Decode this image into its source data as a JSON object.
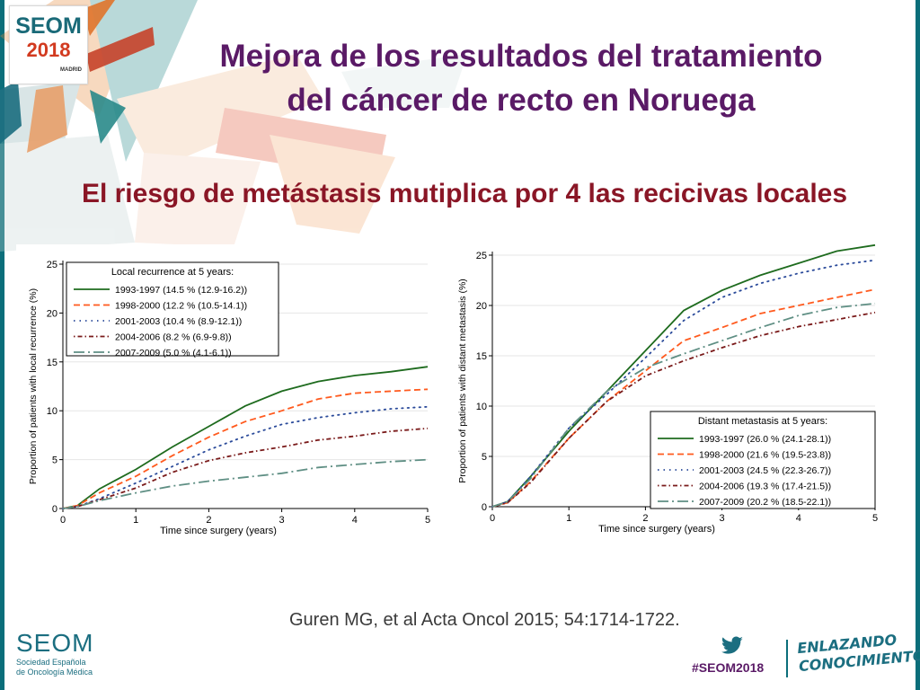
{
  "header": {
    "logo": {
      "name": "SEOM",
      "year": "2018",
      "city": "MADRID"
    },
    "title_line1": "Mejora de los resultados del tratamiento",
    "title_line2": "del cáncer de recto en Noruega",
    "subtitle": "El riesgo de metástasis mutiplica por 4 las recicivas locales"
  },
  "colors": {
    "title": "#5a1a66",
    "subtitle": "#8a1626",
    "brand_teal": "#1b6e80",
    "series": [
      "#1e6b1e",
      "#ff5a1e",
      "#2a4a9a",
      "#7a1a1a",
      "#5f8f84"
    ]
  },
  "chart_data": [
    {
      "type": "line",
      "title": "",
      "xlabel": "Time since surgery (years)",
      "ylabel": "Proportion of patients with local recurrence (%)",
      "xlim": [
        0,
        5
      ],
      "ylim": [
        0,
        25
      ],
      "xticks": [
        0,
        1,
        2,
        3,
        4,
        5
      ],
      "yticks": [
        0,
        5,
        10,
        15,
        20,
        25
      ],
      "grid": true,
      "legend_title": "Local recurrence at 5 years:",
      "legend_position": "top-left",
      "series": [
        {
          "name": "1993-1997 (14.5 % (12.9-16.2))",
          "style": "solid",
          "color": "#1e6b1e",
          "x": [
            0,
            0.2,
            0.5,
            1,
            1.5,
            2,
            2.5,
            3,
            3.5,
            4,
            4.5,
            5
          ],
          "y": [
            0,
            0.3,
            2.0,
            4.0,
            6.3,
            8.4,
            10.5,
            12.0,
            13.0,
            13.6,
            14.0,
            14.5
          ]
        },
        {
          "name": "1998-2000 (12.2 % (10.5-14.1))",
          "style": "dashed",
          "color": "#ff5a1e",
          "x": [
            0,
            0.2,
            0.5,
            1,
            1.5,
            2,
            2.5,
            3,
            3.5,
            4,
            4.5,
            5
          ],
          "y": [
            0,
            0.3,
            1.6,
            3.3,
            5.4,
            7.3,
            8.9,
            10.0,
            11.2,
            11.8,
            12.0,
            12.2
          ]
        },
        {
          "name": "2001-2003 (10.4 % (8.9-12.1))",
          "style": "dotted",
          "color": "#2a4a9a",
          "x": [
            0,
            0.2,
            0.5,
            1,
            1.5,
            2,
            2.5,
            3,
            3.5,
            4,
            4.5,
            5
          ],
          "y": [
            0,
            0.2,
            1.0,
            2.6,
            4.3,
            6.0,
            7.4,
            8.6,
            9.3,
            9.8,
            10.2,
            10.4
          ]
        },
        {
          "name": "2004-2006 (8.2 % (6.9-9.8))",
          "style": "dashdot",
          "color": "#7a1a1a",
          "x": [
            0,
            0.2,
            0.5,
            1,
            1.5,
            2,
            2.5,
            3,
            3.5,
            4,
            4.5,
            5
          ],
          "y": [
            0,
            0.2,
            0.9,
            2.1,
            3.7,
            4.9,
            5.7,
            6.3,
            7.0,
            7.4,
            7.9,
            8.2
          ]
        },
        {
          "name": "2007-2009 (5.0 % (4.1-6.1))",
          "style": "longdash",
          "color": "#5f8f84",
          "x": [
            0,
            0.2,
            0.5,
            1,
            1.5,
            2,
            2.5,
            3,
            3.5,
            4,
            4.5,
            5
          ],
          "y": [
            0,
            0.2,
            0.8,
            1.6,
            2.3,
            2.8,
            3.2,
            3.6,
            4.2,
            4.5,
            4.8,
            5.0
          ]
        }
      ]
    },
    {
      "type": "line",
      "title": "",
      "xlabel": "Time since surgery (years)",
      "ylabel": "Proportion of patients with distant metastasis (%)",
      "xlim": [
        0,
        5
      ],
      "ylim": [
        0,
        25
      ],
      "xticks": [
        0,
        1,
        2,
        3,
        4,
        5
      ],
      "yticks": [
        0,
        5,
        10,
        15,
        20,
        25
      ],
      "grid": true,
      "legend_title": "Distant metastasis at 5 years:",
      "legend_position": "bottom-right",
      "series": [
        {
          "name": "1993-1997 (26.0 % (24.1-28.1))",
          "style": "solid",
          "color": "#1e6b1e",
          "x": [
            0,
            0.2,
            0.5,
            1,
            1.5,
            2,
            2.5,
            3,
            3.5,
            4,
            4.5,
            5
          ],
          "y": [
            0,
            0.5,
            3.0,
            7.5,
            11.5,
            15.5,
            19.5,
            21.5,
            23.0,
            24.2,
            25.4,
            26.0
          ]
        },
        {
          "name": "1998-2000 (21.6 % (19.5-23.8))",
          "style": "dashed",
          "color": "#ff5a1e",
          "x": [
            0,
            0.2,
            0.5,
            1,
            1.5,
            2,
            2.5,
            3,
            3.5,
            4,
            4.5,
            5
          ],
          "y": [
            0,
            0.4,
            2.5,
            6.8,
            10.5,
            13.5,
            16.5,
            17.8,
            19.2,
            20.0,
            20.8,
            21.6
          ]
        },
        {
          "name": "2001-2003 (24.5 % (22.3-26.7))",
          "style": "dotted",
          "color": "#2a4a9a",
          "x": [
            0,
            0.2,
            0.5,
            1,
            1.5,
            2,
            2.5,
            3,
            3.5,
            4,
            4.5,
            5
          ],
          "y": [
            0,
            0.5,
            3.0,
            7.8,
            11.2,
            14.8,
            18.5,
            20.8,
            22.2,
            23.2,
            24.0,
            24.5
          ]
        },
        {
          "name": "2004-2006 (19.3 % (17.4-21.5))",
          "style": "dashdot",
          "color": "#7a1a1a",
          "x": [
            0,
            0.2,
            0.5,
            1,
            1.5,
            2,
            2.5,
            3,
            3.5,
            4,
            4.5,
            5
          ],
          "y": [
            0,
            0.4,
            2.4,
            6.8,
            10.5,
            13.0,
            14.5,
            15.8,
            17.0,
            17.9,
            18.6,
            19.3
          ]
        },
        {
          "name": "2007-2009 (20.2 % (18.5-22.1))",
          "style": "longdash",
          "color": "#5f8f84",
          "x": [
            0,
            0.2,
            0.5,
            1,
            1.5,
            2,
            2.5,
            3,
            3.5,
            4,
            4.5,
            5
          ],
          "y": [
            0,
            0.5,
            2.8,
            7.8,
            11.5,
            13.8,
            15.2,
            16.5,
            17.8,
            19.0,
            19.8,
            20.2
          ]
        }
      ]
    }
  ],
  "citation": "Guren MG, et al Acta Oncol 2015; 54:1714-1722.",
  "footer": {
    "seom": "SEOM",
    "seom_line1": "Sociedad Española",
    "seom_line2": "de Oncología Médica",
    "hashtag": "#SEOM2018",
    "slogan_line1": "ENLAZANDO",
    "slogan_line2": "CONOCIMIENTO",
    "twitter_icon": "twitter-bird-icon"
  }
}
